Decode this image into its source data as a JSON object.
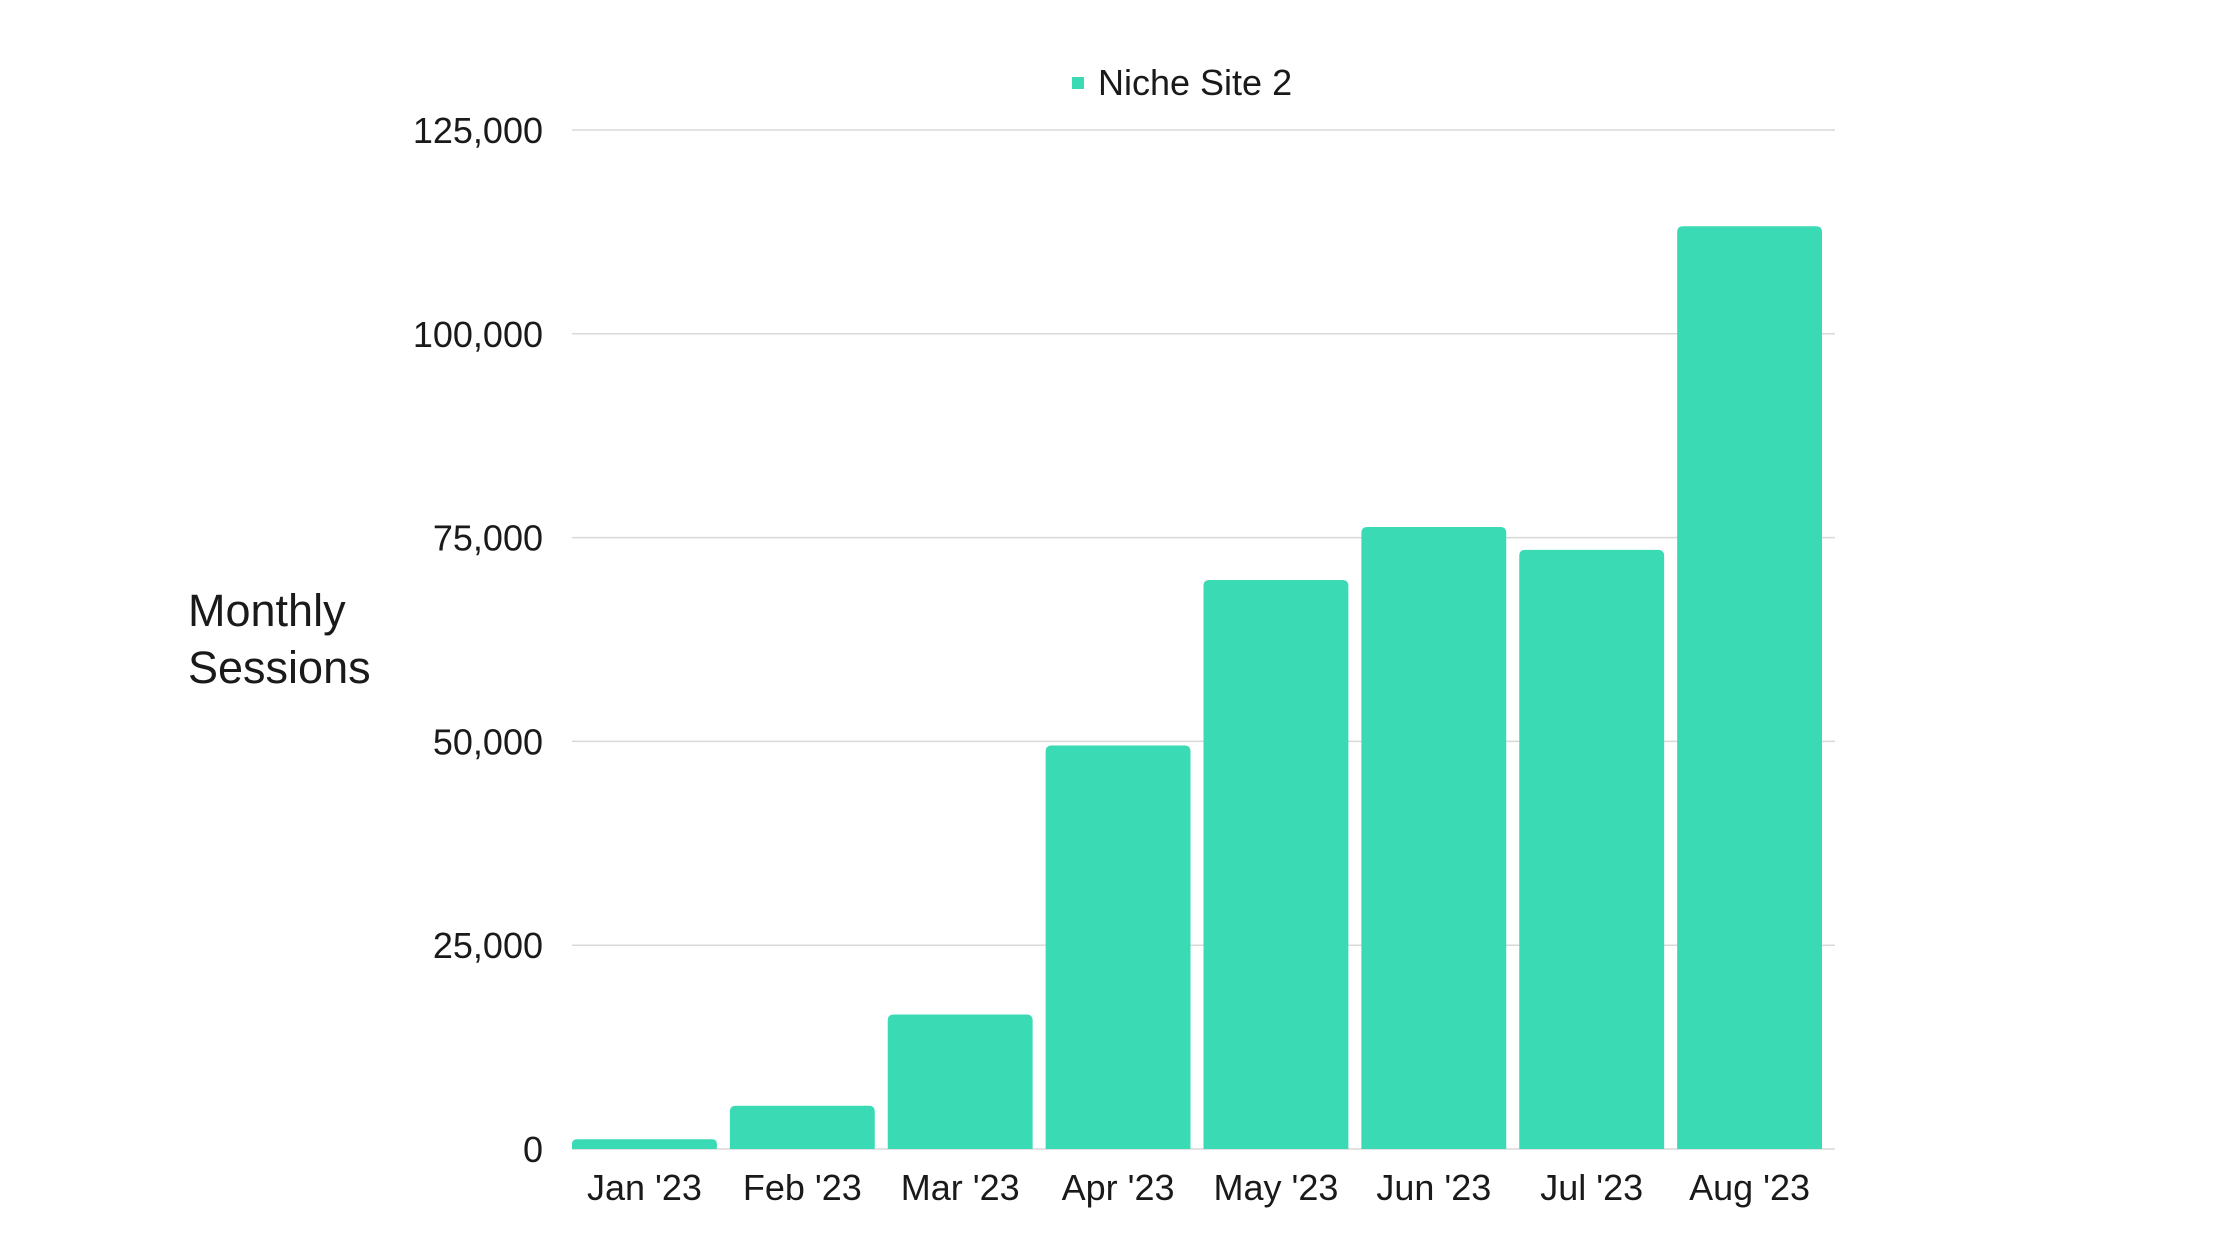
{
  "chart_data": {
    "type": "bar",
    "legend": {
      "position": "top-center"
    },
    "series": [
      {
        "name": "Niche Site 2",
        "color": "#3ADBB4",
        "values": [
          1200,
          5300,
          16500,
          49500,
          69800,
          76300,
          73500,
          113200
        ]
      }
    ],
    "categories": [
      "Jan '23",
      "Feb '23",
      "Mar '23",
      "Apr '23",
      "May '23",
      "Jun '23",
      "Jul '23",
      "Aug '23"
    ],
    "ylabel_lines": [
      "Monthly",
      "Sessions"
    ],
    "ylim": [
      0,
      125000
    ],
    "yticks": [
      0,
      25000,
      50000,
      75000,
      100000,
      125000
    ],
    "ytick_labels": [
      "0",
      "25,000",
      "50,000",
      "75,000",
      "100,000",
      "125,000"
    ],
    "grid": true,
    "colors": {
      "grid": "#D9D9D9",
      "text": "#1a1a1a"
    }
  }
}
